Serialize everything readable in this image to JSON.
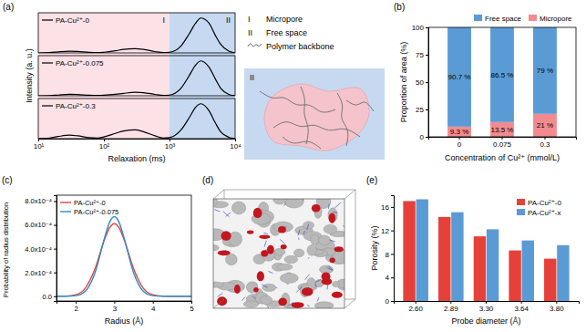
{
  "chart_data": [
    {
      "type": "line",
      "title": "(a)",
      "x_label": "Relaxation (ms)",
      "y_label": "Intensity (a. u.)",
      "log": "x",
      "xlim": [
        10,
        10000
      ],
      "xticks": [
        {
          "value": 10,
          "label": "10¹"
        },
        {
          "value": 100,
          "label": "10²"
        },
        {
          "value": 1000,
          "label": "10³"
        },
        {
          "value": 10000,
          "label": "10⁴"
        }
      ],
      "ylim": [
        0,
        1.15
      ],
      "tick_labels": "x",
      "legend": "upper left",
      "regions": [
        {
          "label": "I",
          "range": [
            10,
            1000
          ],
          "color": "#fce1e7"
        },
        {
          "label": "II",
          "range": [
            1000,
            10000
          ],
          "color": "#c6d9f1"
        }
      ],
      "x": [
        10,
        15,
        20,
        30,
        40,
        60,
        80,
        100,
        150,
        200,
        300,
        400,
        600,
        800,
        1000,
        1500,
        2000,
        2500,
        3000,
        4000,
        5000,
        6000,
        8000,
        10000
      ],
      "series": [
        {
          "name": "PA-Cu²⁺-0",
          "color": "#000000",
          "values": [
            0,
            0.01,
            0.03,
            0.05,
            0.04,
            0.015,
            0.01,
            0.02,
            0.06,
            0.1,
            0.12,
            0.1,
            0.04,
            0.01,
            0.02,
            0.2,
            0.55,
            0.85,
            1.0,
            0.85,
            0.5,
            0.25,
            0.05,
            0
          ]
        },
        {
          "name": "PA-Cu²⁺-0.075",
          "color": "#000000",
          "values": [
            0,
            0.005,
            0.02,
            0.04,
            0.035,
            0.015,
            0.01,
            0.015,
            0.04,
            0.07,
            0.1,
            0.09,
            0.04,
            0.01,
            0.02,
            0.22,
            0.58,
            0.88,
            1.0,
            0.82,
            0.48,
            0.22,
            0.04,
            0
          ]
        },
        {
          "name": "PA-Cu²⁺-0.3",
          "color": "#000000",
          "values": [
            0,
            0.02,
            0.06,
            0.1,
            0.08,
            0.03,
            0.02,
            0.05,
            0.15,
            0.22,
            0.25,
            0.2,
            0.08,
            0.02,
            0.03,
            0.25,
            0.6,
            0.9,
            1.0,
            0.8,
            0.45,
            0.2,
            0.04,
            0
          ]
        }
      ]
    },
    {
      "type": "bar",
      "title": "(b)",
      "x_label": "Concentration of Cu²⁺ (mmol/L)",
      "y_label": "Proportion of area (%)",
      "stacked": true,
      "data_labels": true,
      "legend": "upper right",
      "categories": [
        "0",
        "0.075",
        "0.3"
      ],
      "ylim": [
        0,
        100
      ],
      "yticks": [
        0,
        25,
        50,
        75,
        100
      ],
      "series": [
        {
          "name": "Free space",
          "color": "#5b9bd5",
          "values": [
            90.7,
            86.5,
            79
          ],
          "value_labels": [
            "90.7 %",
            "86.5 %",
            "79 %"
          ]
        },
        {
          "name": "Micropore",
          "color": "#f28b8f",
          "values": [
            9.3,
            13.5,
            21
          ],
          "value_labels": [
            "9.3 %",
            "13.5 %",
            "21 %"
          ]
        }
      ]
    },
    {
      "type": "line",
      "title": "(c)",
      "x_label": "Radius (Å)",
      "y_label": "Probability of radius distribution",
      "legend": "upper left",
      "xlim": [
        1.5,
        5
      ],
      "xticks": [
        2,
        3,
        4,
        5
      ],
      "ylim": [
        -4e-05,
        0.00085
      ],
      "yticks": [
        {
          "value": 0,
          "label": "0.0"
        },
        {
          "value": 0.0002,
          "label": "2.0x10⁻⁴"
        },
        {
          "value": 0.0004,
          "label": "4.0x10⁻⁴"
        },
        {
          "value": 0.0006,
          "label": "6.0x10⁻⁴"
        },
        {
          "value": 0.0008,
          "label": "8.0x10⁻⁴"
        }
      ],
      "x": [
        1.5,
        1.75,
        2,
        2.25,
        2.5,
        2.75,
        2.875,
        3,
        3.125,
        3.25,
        3.5,
        3.75,
        4,
        4.25,
        4.5,
        5
      ],
      "series": [
        {
          "name": "PA-Cu²⁺-0",
          "color": "#e8413c",
          "values": [
            0,
            1.5e-06,
            1.3e-05,
            6.9e-05,
            0.000232,
            0.00048,
            0.000574,
            0.00061,
            0.000574,
            0.00048,
            0.000232,
            6.9e-05,
            1.3e-05,
            1.5e-06,
            0,
            0
          ]
        },
        {
          "name": "PA-Cu²⁺-0.075",
          "color": "#2a8cc4",
          "values": [
            0,
            0,
            5e-06,
            4.3e-05,
            0.000198,
            0.000494,
            0.000621,
            0.00067,
            0.000621,
            0.000494,
            0.000198,
            4.3e-05,
            5e-06,
            0,
            0,
            0
          ]
        }
      ]
    },
    {
      "type": "bar",
      "title": "(e)",
      "x_label": "Probe diameter (Å)",
      "y_label": "Porosity (%)",
      "legend": "upper right",
      "categories": [
        "2.60",
        "2.89",
        "3.30",
        "3.64",
        "3.80"
      ],
      "ylim": [
        0,
        18
      ],
      "yticks": [
        0,
        4,
        8,
        12,
        16
      ],
      "series": [
        {
          "name": "PA-Cu²⁺-0",
          "color": "#e5413b",
          "values": [
            17.0,
            14.3,
            11.0,
            8.6,
            7.2
          ]
        },
        {
          "name": "PA-Cu²⁺-x",
          "color": "#5b9bd5",
          "values": [
            17.3,
            15.1,
            12.2,
            10.3,
            9.5
          ]
        }
      ]
    }
  ],
  "diagram": {
    "schematic": {
      "legend": [
        {
          "symbol": "I",
          "label": "Micropore"
        },
        {
          "symbol": "II",
          "label": "Free space"
        },
        {
          "label": "Polymer backbone"
        }
      ],
      "region_label": "II"
    },
    "structure": {
      "title": "(d)"
    }
  }
}
